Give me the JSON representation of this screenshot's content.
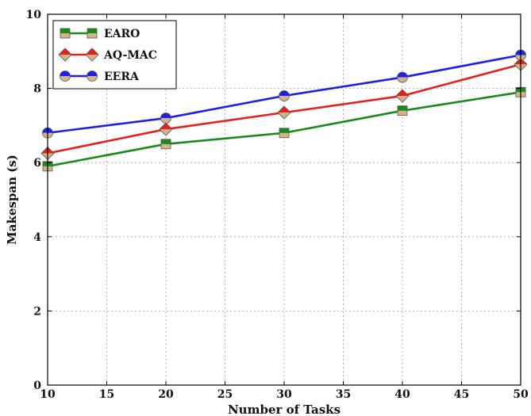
{
  "chart_data": {
    "type": "line",
    "xlabel": "Number of Tasks",
    "ylabel": "Makespan (s)",
    "xlim": [
      10,
      50
    ],
    "ylim": [
      0,
      10
    ],
    "x_ticks": [
      10,
      15,
      20,
      25,
      30,
      35,
      40,
      45,
      50
    ],
    "y_ticks": [
      0,
      2,
      4,
      6,
      8,
      10
    ],
    "grid": true,
    "legend_position": "top-left",
    "x": [
      10,
      20,
      30,
      40,
      50
    ],
    "series": [
      {
        "name": "EARO",
        "values": [
          5.9,
          6.5,
          6.8,
          7.4,
          7.9
        ],
        "color": "#1a8a1a",
        "marker": "square",
        "marker_fill": "#d2b48c"
      },
      {
        "name": "AQ-MAC",
        "values": [
          6.25,
          6.9,
          7.35,
          7.8,
          8.65
        ],
        "color": "#e8201c",
        "marker": "diamond",
        "marker_fill": "#d2b48c"
      },
      {
        "name": "EERA",
        "values": [
          6.8,
          7.2,
          7.8,
          8.3,
          8.9
        ],
        "color": "#1f1fe8",
        "marker": "circle",
        "marker_fill": "#d2b48c"
      }
    ]
  }
}
